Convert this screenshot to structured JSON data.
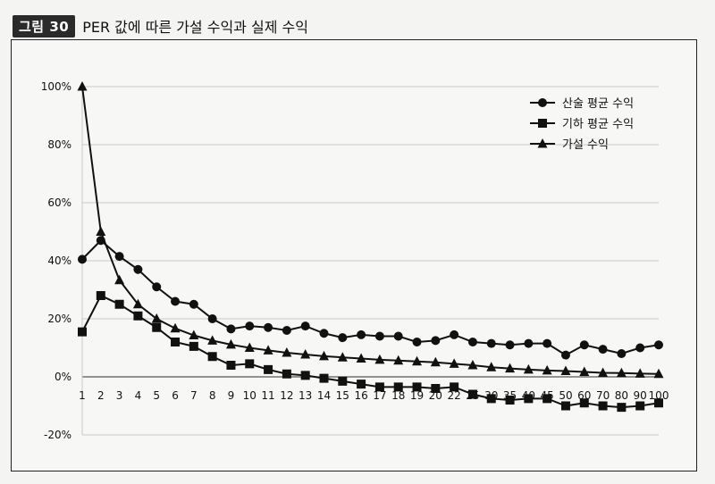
{
  "header": {
    "figure_label": "그림 30",
    "title": "PER 값에 따른 가설 수익과 실제 수익"
  },
  "chart_data": {
    "type": "line",
    "title": "PER 값에 따른 가설 수익과 실제 수익",
    "categories": [
      "1",
      "2",
      "3",
      "4",
      "5",
      "6",
      "7",
      "8",
      "9",
      "10",
      "11",
      "12",
      "13",
      "14",
      "15",
      "16",
      "17",
      "18",
      "19",
      "20",
      "22",
      "25",
      "30",
      "35",
      "40",
      "45",
      "50",
      "60",
      "70",
      "80",
      "90",
      "100"
    ],
    "y_ticks": [
      "100%",
      "80%",
      "60%",
      "40%",
      "20%",
      "0%",
      "-20%"
    ],
    "ylim": [
      -20,
      100
    ],
    "grid": "horizontal",
    "legend_position": "top-right",
    "series": [
      {
        "name": "산술 평균 수익",
        "marker": "circle",
        "values": [
          40.5,
          47,
          41.5,
          37,
          31,
          26,
          25,
          20,
          16.5,
          17.5,
          17,
          16,
          17.5,
          15,
          13.5,
          14.5,
          14,
          14,
          12,
          12.5,
          14.5,
          12,
          11.5,
          11,
          11.5,
          11.5,
          7.5,
          11,
          9.5,
          8,
          10,
          11
        ]
      },
      {
        "name": "기하 평균 수익",
        "marker": "square",
        "values": [
          15.5,
          28,
          25,
          21,
          17,
          12,
          10.5,
          7,
          4,
          4.5,
          2.5,
          1,
          0.5,
          -0.5,
          -1.5,
          -2.5,
          -3.5,
          -3.5,
          -3.5,
          -4,
          -3.5,
          -6,
          -7.5,
          -8,
          -7.5,
          -7.5,
          -10,
          -9,
          -10,
          -10.5,
          -10,
          -9
        ]
      },
      {
        "name": "가설 수익",
        "marker": "triangle",
        "values": [
          100,
          50,
          33.3,
          25,
          20,
          16.7,
          14.3,
          12.5,
          11.1,
          10,
          9.1,
          8.3,
          7.7,
          7.1,
          6.7,
          6.3,
          5.9,
          5.6,
          5.3,
          5,
          4.5,
          4,
          3.3,
          2.9,
          2.5,
          2.2,
          2,
          1.7,
          1.4,
          1.3,
          1.1,
          1
        ]
      }
    ],
    "colors": {
      "line": "#111111",
      "grid": "#c9c9c9",
      "axis": "#555555"
    }
  }
}
